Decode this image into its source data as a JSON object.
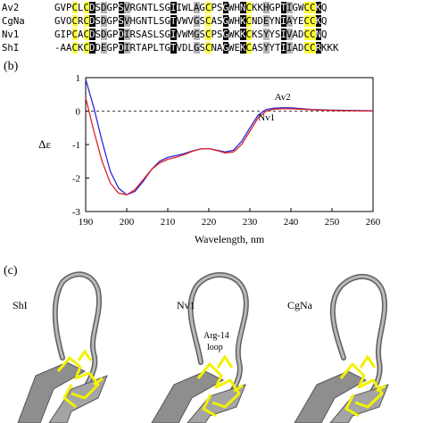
{
  "alignment": {
    "rows": [
      {
        "name": "Av2",
        "seq": "GVPCLCDSDGPSVRGNTLSGIIWLAGCPSGWHNCKKHGPTIGWCCKQ"
      },
      {
        "name": "CgNa",
        "seq": "GVOCRCDSDGPSVHGNTLSGTVWVGSCASGWHKCNDEYNIAYECCKQ"
      },
      {
        "name": "Nv1",
        "seq": "GIPCACDSDGPDIRSASLSGIVWMGSCPSGWKKCKSYYSIVADCCNQ"
      },
      {
        "name": "ShI",
        "seq": "-AACKCDDEGPDIRTAPLTGTVDLGSCNAGWEKCASYYTIIADCCRKKK"
      }
    ]
  },
  "panel_b": {
    "label": "(b)",
    "ylabel": "Δε",
    "xlabel": "Wavelength, nm",
    "series_labels": [
      "Av2",
      "Nv1"
    ]
  },
  "chart_data": {
    "type": "line",
    "xlabel": "Wavelength, nm",
    "ylabel": "Δε",
    "xlim": [
      190,
      260
    ],
    "ylim": [
      -3,
      1
    ],
    "xticks": [
      190,
      200,
      210,
      220,
      230,
      240,
      250,
      260
    ],
    "yticks": [
      -3,
      -2,
      -1,
      0,
      1
    ],
    "zero_line": "dashed",
    "series": [
      {
        "name": "Av2",
        "color": "#2a2ae0",
        "points": [
          [
            190,
            0.95
          ],
          [
            192,
            0.1
          ],
          [
            194,
            -0.9
          ],
          [
            196,
            -1.8
          ],
          [
            198,
            -2.3
          ],
          [
            200,
            -2.5
          ],
          [
            202,
            -2.4
          ],
          [
            204,
            -2.1
          ],
          [
            206,
            -1.75
          ],
          [
            208,
            -1.5
          ],
          [
            210,
            -1.38
          ],
          [
            212,
            -1.33
          ],
          [
            214,
            -1.27
          ],
          [
            216,
            -1.19
          ],
          [
            218,
            -1.13
          ],
          [
            220,
            -1.12
          ],
          [
            222,
            -1.17
          ],
          [
            224,
            -1.22
          ],
          [
            226,
            -1.17
          ],
          [
            228,
            -0.9
          ],
          [
            230,
            -0.5
          ],
          [
            232,
            -0.12
          ],
          [
            234,
            0.05
          ],
          [
            236,
            0.09
          ],
          [
            238,
            0.1
          ],
          [
            240,
            0.1
          ],
          [
            242,
            0.08
          ],
          [
            245,
            0.05
          ],
          [
            250,
            0.03
          ],
          [
            255,
            0.02
          ],
          [
            260,
            0.01
          ]
        ]
      },
      {
        "name": "Nv1",
        "color": "#e02020",
        "points": [
          [
            190,
            0.4
          ],
          [
            192,
            -0.6
          ],
          [
            194,
            -1.5
          ],
          [
            196,
            -2.15
          ],
          [
            198,
            -2.45
          ],
          [
            200,
            -2.5
          ],
          [
            202,
            -2.35
          ],
          [
            204,
            -2.05
          ],
          [
            206,
            -1.75
          ],
          [
            208,
            -1.55
          ],
          [
            210,
            -1.44
          ],
          [
            212,
            -1.38
          ],
          [
            214,
            -1.3
          ],
          [
            216,
            -1.2
          ],
          [
            218,
            -1.13
          ],
          [
            220,
            -1.12
          ],
          [
            222,
            -1.18
          ],
          [
            224,
            -1.25
          ],
          [
            226,
            -1.22
          ],
          [
            228,
            -1.0
          ],
          [
            230,
            -0.6
          ],
          [
            232,
            -0.2
          ],
          [
            234,
            0.0
          ],
          [
            236,
            0.06
          ],
          [
            238,
            0.07
          ],
          [
            240,
            0.07
          ],
          [
            242,
            0.06
          ],
          [
            245,
            0.04
          ],
          [
            250,
            0.02
          ],
          [
            255,
            0.01
          ],
          [
            260,
            0.0
          ]
        ]
      }
    ]
  },
  "panel_c": {
    "label": "(c)",
    "names": [
      "ShI",
      "Nv1",
      "CgNa"
    ],
    "annotation_line1": "Arg-14",
    "annotation_line2": "loop",
    "ribbon_color": "#8a8a8a",
    "sidechain_color": "#f2f200"
  }
}
